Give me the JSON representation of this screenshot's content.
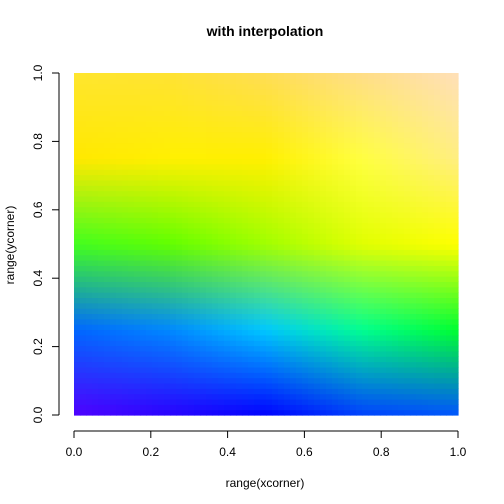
{
  "chart_data": {
    "type": "heatmap",
    "title": "with interpolation",
    "xlabel": "range(xcorner)",
    "ylabel": "range(ycorner)",
    "xlim": [
      0,
      1
    ],
    "ylim": [
      0,
      1
    ],
    "x_ticks": [
      0.0,
      0.2,
      0.4,
      0.6,
      0.8,
      1.0
    ],
    "y_ticks": [
      0.0,
      0.2,
      0.4,
      0.6,
      0.8,
      1.0
    ],
    "x_tick_labels": [
      "0.0",
      "0.2",
      "0.4",
      "0.6",
      "0.8",
      "1.0"
    ],
    "y_tick_labels": [
      "0.0",
      "0.2",
      "0.4",
      "0.6",
      "0.8",
      "1.0"
    ],
    "interpolated": true,
    "grid_x": [
      0.0,
      0.25,
      0.5,
      0.75,
      1.0
    ],
    "grid_y": [
      0.0,
      0.25,
      0.5,
      0.75,
      1.0
    ],
    "color_grid_rows_bottom_to_top": [
      [
        "#5000ff",
        "#2a00ff",
        "#0000ff",
        "#0040ff",
        "#0055ff"
      ],
      [
        "#0066ff",
        "#0088ff",
        "#00c8ff",
        "#00ff90",
        "#00ff30"
      ],
      [
        "#40ff20",
        "#60ff00",
        "#a0ff00",
        "#e0ff00",
        "#ffff00"
      ],
      [
        "#ffe800",
        "#fff000",
        "#fff000",
        "#ffff40",
        "#ffee80"
      ],
      [
        "#ffe62e",
        "#ffe233",
        "#ffdd55",
        "#ffdd88",
        "#ffe0b8"
      ]
    ]
  }
}
